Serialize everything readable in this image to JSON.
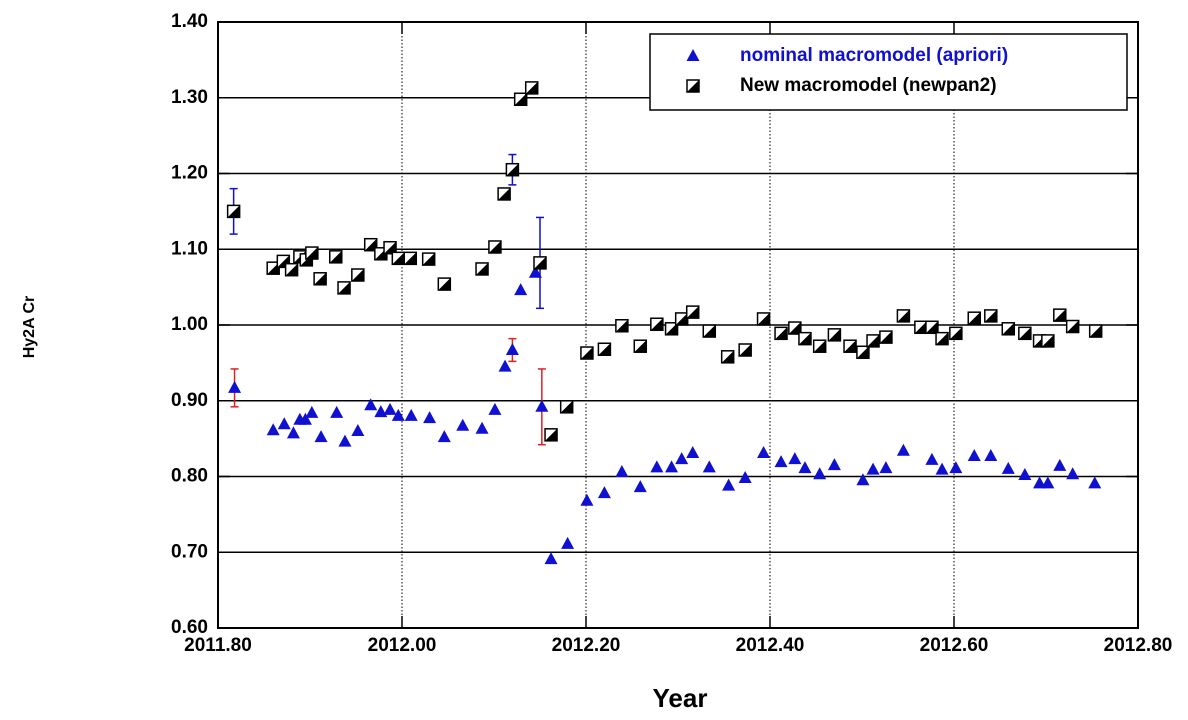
{
  "chart_data": {
    "type": "scatter",
    "x_label": "Year",
    "y_label": "Hy2A Cr",
    "xlim": [
      2011.8,
      2012.8
    ],
    "ylim": [
      0.6,
      1.4
    ],
    "xticks": [
      {
        "value": 2011.8,
        "label": "2011.80"
      },
      {
        "value": 2012.0,
        "label": "2012.00"
      },
      {
        "value": 2012.2,
        "label": "2012.20"
      },
      {
        "value": 2012.4,
        "label": "2012.40"
      },
      {
        "value": 2012.6,
        "label": "2012.60"
      },
      {
        "value": 2012.8,
        "label": "2012.80"
      }
    ],
    "yticks": [
      {
        "value": 0.6,
        "label": "0.60"
      },
      {
        "value": 0.7,
        "label": "0.70"
      },
      {
        "value": 0.8,
        "label": "0.80"
      },
      {
        "value": 0.9,
        "label": "0.90"
      },
      {
        "value": 1.0,
        "label": "1.00"
      },
      {
        "value": 1.1,
        "label": "1.10"
      },
      {
        "value": 1.2,
        "label": "1.20"
      },
      {
        "value": 1.3,
        "label": "1.30"
      },
      {
        "value": 1.4,
        "label": "1.40"
      }
    ],
    "grid": true,
    "legend": "upper right",
    "series": [
      {
        "name": "nominal macromodel (apriori)",
        "color": "#1010d0",
        "marker": "triangle",
        "x": [
          2011.818,
          2011.86,
          2011.872,
          2011.882,
          2011.889,
          2011.895,
          2011.902,
          2011.912,
          2011.929,
          2011.938,
          2011.952,
          2011.966,
          2011.977,
          2011.987,
          2011.996,
          2012.01,
          2012.03,
          2012.046,
          2012.066,
          2012.087,
          2012.101,
          2012.112,
          2012.12,
          2012.129,
          2012.145,
          2012.152,
          2012.162,
          2012.18,
          2012.201,
          2012.22,
          2012.239,
          2012.259,
          2012.277,
          2012.293,
          2012.304,
          2012.316,
          2012.334,
          2012.355,
          2012.373,
          2012.393,
          2012.412,
          2012.427,
          2012.438,
          2012.454,
          2012.47,
          2012.501,
          2012.512,
          2012.526,
          2012.545,
          2012.576,
          2012.587,
          2012.602,
          2012.622,
          2012.64,
          2012.659,
          2012.677,
          2012.693,
          2012.702,
          2012.715,
          2012.729,
          2012.753
        ],
        "values": [
          0.917,
          0.861,
          0.869,
          0.857,
          0.875,
          0.875,
          0.884,
          0.852,
          0.884,
          0.846,
          0.86,
          0.894,
          0.885,
          0.888,
          0.88,
          0.88,
          0.877,
          0.852,
          0.867,
          0.863,
          0.888,
          0.945,
          0.967,
          1.046,
          1.069,
          0.892,
          0.691,
          0.711,
          0.768,
          0.778,
          0.806,
          0.786,
          0.812,
          0.812,
          0.823,
          0.831,
          0.812,
          0.788,
          0.798,
          0.831,
          0.819,
          0.823,
          0.811,
          0.803,
          0.815,
          0.795,
          0.809,
          0.811,
          0.834,
          0.822,
          0.809,
          0.811,
          0.827,
          0.827,
          0.81,
          0.802,
          0.791,
          0.791,
          0.814,
          0.803,
          0.791
        ]
      },
      {
        "name": "New macromodel (newpan2)",
        "color": "#000000",
        "marker": "half-square",
        "x": [
          2011.817,
          2011.86,
          2011.871,
          2011.88,
          2011.889,
          2011.896,
          2011.902,
          2011.911,
          2011.928,
          2011.937,
          2011.952,
          2011.966,
          2011.977,
          2011.987,
          2011.996,
          2012.009,
          2012.029,
          2012.046,
          2012.087,
          2012.101,
          2012.111,
          2012.12,
          2012.129,
          2012.141,
          2012.15,
          2012.162,
          2012.179,
          2012.201,
          2012.22,
          2012.239,
          2012.259,
          2012.277,
          2012.293,
          2012.304,
          2012.316,
          2012.334,
          2012.354,
          2012.373,
          2012.393,
          2012.412,
          2012.427,
          2012.438,
          2012.454,
          2012.47,
          2012.487,
          2012.501,
          2012.512,
          2012.526,
          2012.545,
          2012.564,
          2012.576,
          2012.587,
          2012.602,
          2012.622,
          2012.64,
          2012.659,
          2012.677,
          2012.693,
          2012.702,
          2012.715,
          2012.729,
          2012.754
        ],
        "values": [
          1.15,
          1.075,
          1.084,
          1.073,
          1.09,
          1.086,
          1.095,
          1.061,
          1.09,
          1.049,
          1.066,
          1.106,
          1.094,
          1.102,
          1.088,
          1.088,
          1.087,
          1.054,
          1.074,
          1.103,
          1.173,
          1.205,
          1.298,
          1.313,
          1.082,
          0.855,
          0.892,
          0.963,
          0.968,
          0.999,
          0.972,
          1.001,
          0.995,
          1.008,
          1.017,
          0.992,
          0.958,
          0.967,
          1.008,
          0.989,
          0.996,
          0.982,
          0.972,
          0.987,
          0.972,
          0.964,
          0.979,
          0.984,
          1.012,
          0.997,
          0.997,
          0.982,
          0.989,
          1.009,
          1.012,
          0.995,
          0.989,
          0.979,
          0.979,
          1.013,
          0.998,
          0.992
        ]
      }
    ],
    "error_bars": [
      {
        "x": 2011.817,
        "y": 1.15,
        "err": 0.03,
        "color": "#1010d0"
      },
      {
        "x": 2011.818,
        "y": 0.917,
        "err": 0.025,
        "color": "#e02020"
      },
      {
        "x": 2012.12,
        "y": 1.205,
        "err": 0.02,
        "color": "#1010d0"
      },
      {
        "x": 2012.12,
        "y": 0.967,
        "err": 0.015,
        "color": "#e02020"
      },
      {
        "x": 2012.15,
        "y": 1.082,
        "err": 0.06,
        "color": "#1010d0"
      },
      {
        "x": 2012.152,
        "y": 0.892,
        "err": 0.05,
        "color": "#e02020"
      }
    ]
  }
}
